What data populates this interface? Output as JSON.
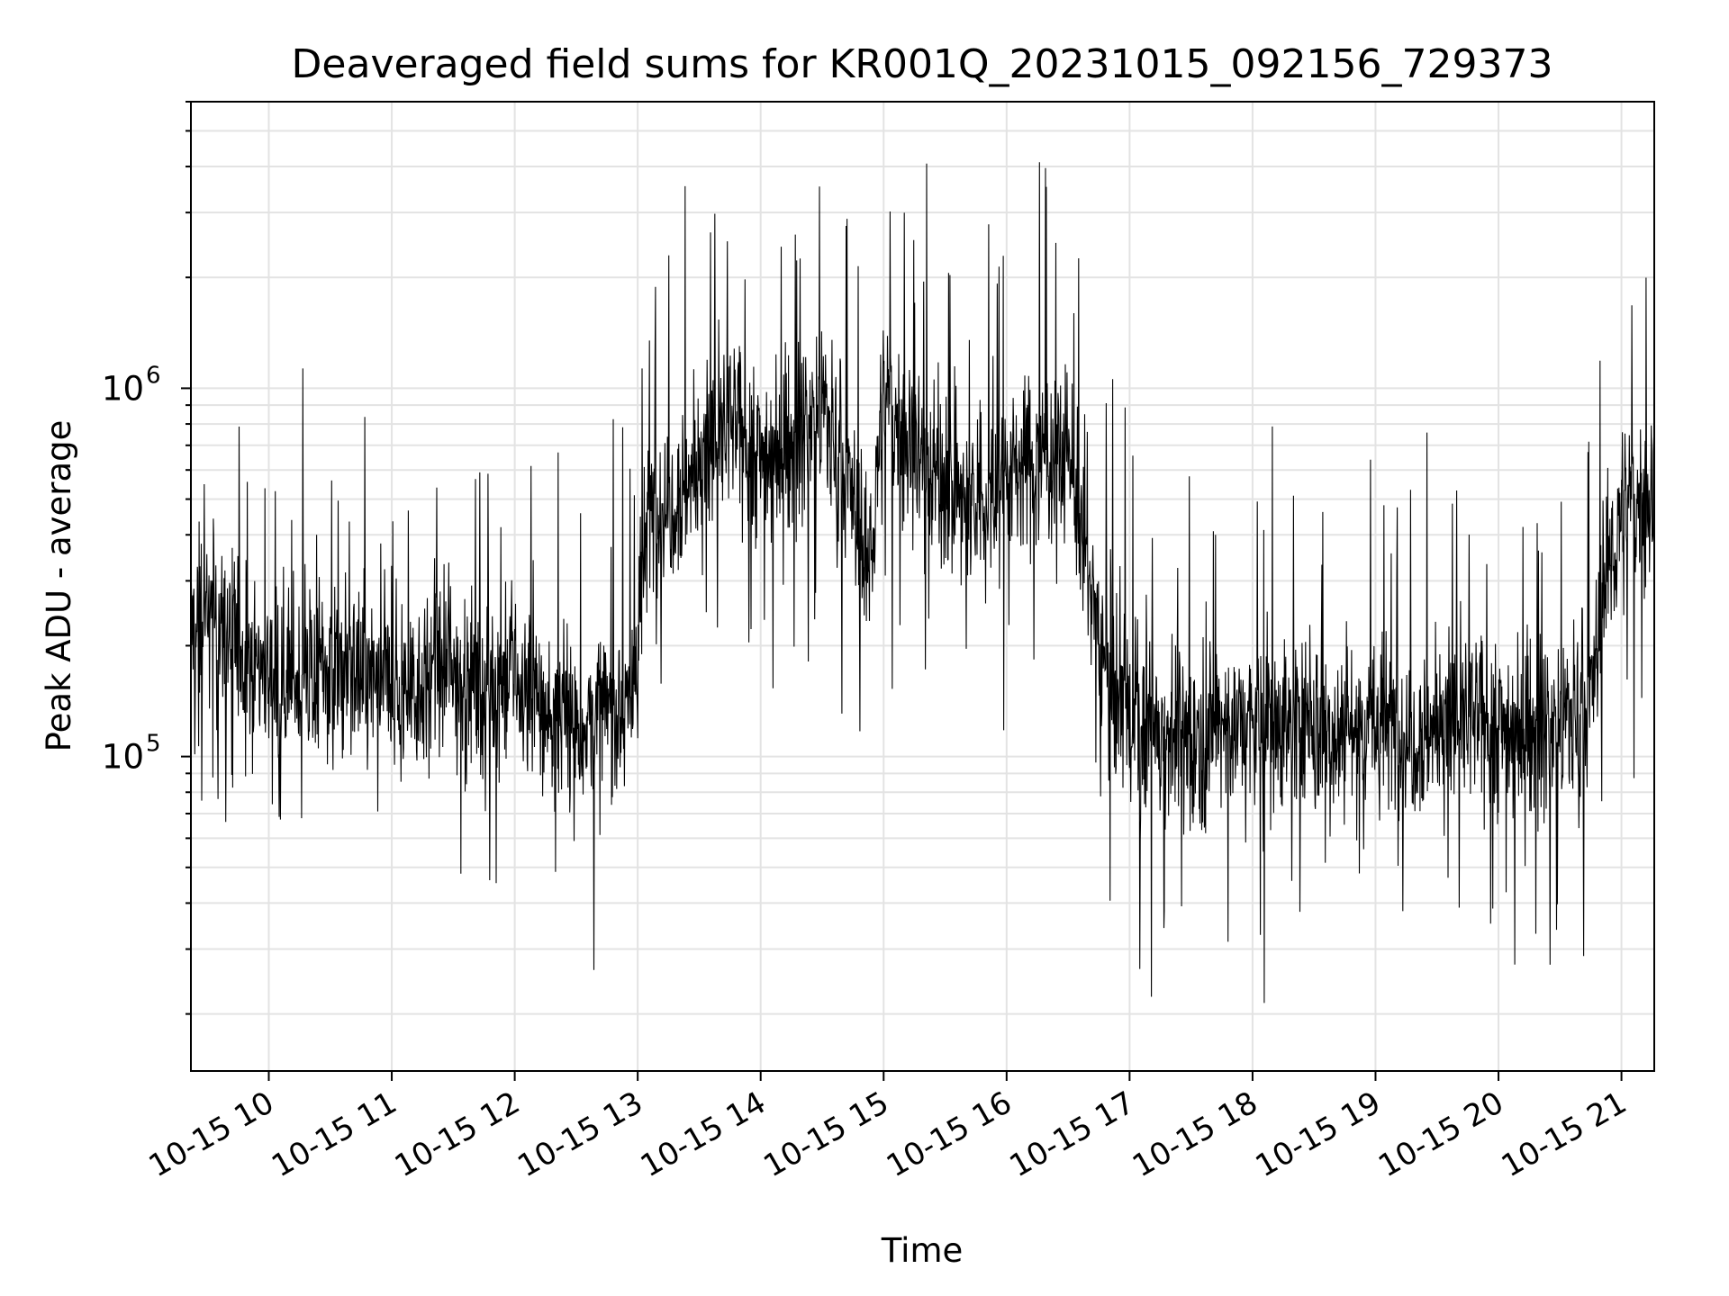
{
  "chart_data": {
    "type": "line",
    "title": "Deaveraged field sums for KR001Q_20231015_092156_729373",
    "xlabel": "Time",
    "ylabel": "Peak ADU - average",
    "xscale": "time",
    "yscale": "log",
    "grid": true,
    "legend": "none",
    "x_range": [
      "2023-10-15 09:22",
      "2023-10-15 21:16"
    ],
    "ylim": [
      14000,
      6000000
    ],
    "x_ticks": [
      {
        "t": "2023-10-15 10:00",
        "label": "10-15 10"
      },
      {
        "t": "2023-10-15 11:00",
        "label": "10-15 11"
      },
      {
        "t": "2023-10-15 12:00",
        "label": "10-15 12"
      },
      {
        "t": "2023-10-15 13:00",
        "label": "10-15 13"
      },
      {
        "t": "2023-10-15 14:00",
        "label": "10-15 14"
      },
      {
        "t": "2023-10-15 15:00",
        "label": "10-15 15"
      },
      {
        "t": "2023-10-15 16:00",
        "label": "10-15 16"
      },
      {
        "t": "2023-10-15 17:00",
        "label": "10-15 17"
      },
      {
        "t": "2023-10-15 18:00",
        "label": "10-15 18"
      },
      {
        "t": "2023-10-15 19:00",
        "label": "10-15 19"
      },
      {
        "t": "2023-10-15 20:00",
        "label": "10-15 20"
      },
      {
        "t": "2023-10-15 21:00",
        "label": "10-15 21"
      }
    ],
    "y_ticks": [
      {
        "value": 100000,
        "base": "10",
        "exp": "5"
      },
      {
        "value": 1000000,
        "base": "10",
        "exp": "6"
      }
    ],
    "series": [
      {
        "color": "#000000",
        "x": [
          "2023-10-15 09:22",
          "2023-10-15 09:30",
          "2023-10-15 09:45",
          "2023-10-15 10:00",
          "2023-10-15 10:15",
          "2023-10-15 10:30",
          "2023-10-15 10:45",
          "2023-10-15 11:00",
          "2023-10-15 11:15",
          "2023-10-15 11:30",
          "2023-10-15 11:45",
          "2023-10-15 12:00",
          "2023-10-15 12:15",
          "2023-10-15 12:30",
          "2023-10-15 12:45",
          "2023-10-15 12:58",
          "2023-10-15 13:05",
          "2023-10-15 13:15",
          "2023-10-15 13:30",
          "2023-10-15 13:45",
          "2023-10-15 14:00",
          "2023-10-15 14:15",
          "2023-10-15 14:30",
          "2023-10-15 14:45",
          "2023-10-15 14:52",
          "2023-10-15 15:00",
          "2023-10-15 15:15",
          "2023-10-15 15:30",
          "2023-10-15 15:45",
          "2023-10-15 16:00",
          "2023-10-15 16:15",
          "2023-10-15 16:30",
          "2023-10-15 16:40",
          "2023-10-15 16:50",
          "2023-10-15 17:00",
          "2023-10-15 17:15",
          "2023-10-15 17:30",
          "2023-10-15 17:45",
          "2023-10-15 18:00",
          "2023-10-15 18:15",
          "2023-10-15 18:30",
          "2023-10-15 18:45",
          "2023-10-15 19:00",
          "2023-10-15 19:15",
          "2023-10-15 19:30",
          "2023-10-15 19:45",
          "2023-10-15 20:00",
          "2023-10-15 20:15",
          "2023-10-15 20:30",
          "2023-10-15 20:45",
          "2023-10-15 20:52",
          "2023-10-15 21:00",
          "2023-10-15 21:10",
          "2023-10-15 21:16"
        ],
        "y": [
          220000,
          240000,
          200000,
          170000,
          160000,
          175000,
          165000,
          150000,
          160000,
          170000,
          155000,
          160000,
          130000,
          120000,
          130000,
          150000,
          450000,
          500000,
          600000,
          800000,
          650000,
          700000,
          900000,
          500000,
          300000,
          900000,
          700000,
          550000,
          450000,
          600000,
          650000,
          700000,
          300000,
          160000,
          130000,
          120000,
          110000,
          125000,
          120000,
          125000,
          115000,
          120000,
          125000,
          115000,
          120000,
          125000,
          120000,
          118000,
          122000,
          140000,
          300000,
          450000,
          500000,
          520000
        ]
      }
    ]
  }
}
